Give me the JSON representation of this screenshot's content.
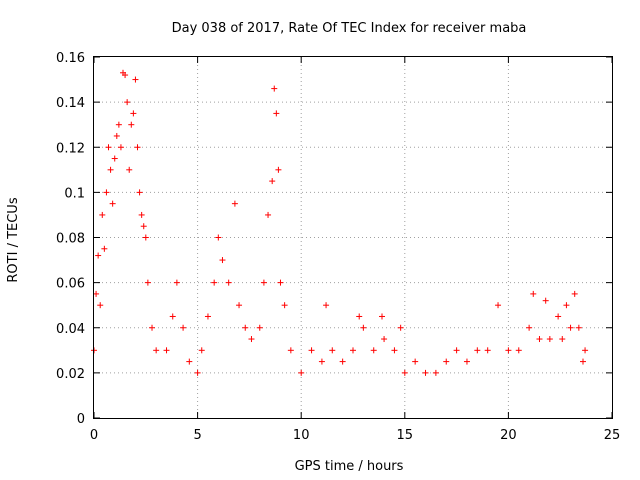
{
  "chart_data": {
    "type": "scatter",
    "title": "Day 038 of 2017, Rate Of TEC Index for receiver maba",
    "xlabel": "GPS time / hours",
    "ylabel": "ROTI / TECUs",
    "xlim": [
      0,
      25
    ],
    "ylim": [
      0,
      0.16
    ],
    "x_ticks": [
      "0",
      "5",
      "10",
      "15",
      "20",
      "25"
    ],
    "y_ticks": [
      "0",
      "0.02",
      "0.04",
      "0.06",
      "0.08",
      "0.1",
      "0.12",
      "0.14",
      "0.16"
    ],
    "grid": true,
    "marker": "plus",
    "series_color": "#ff0000",
    "series": [
      {
        "points": [
          [
            0.0,
            0.03
          ],
          [
            0.1,
            0.055
          ],
          [
            0.2,
            0.072
          ],
          [
            0.3,
            0.05
          ],
          [
            0.4,
            0.09
          ],
          [
            0.5,
            0.075
          ],
          [
            0.6,
            0.1
          ],
          [
            0.7,
            0.12
          ],
          [
            0.8,
            0.11
          ],
          [
            0.9,
            0.095
          ],
          [
            1.0,
            0.115
          ],
          [
            1.1,
            0.125
          ],
          [
            1.2,
            0.13
          ],
          [
            1.3,
            0.12
          ],
          [
            1.4,
            0.153
          ],
          [
            1.5,
            0.152
          ],
          [
            1.6,
            0.14
          ],
          [
            1.7,
            0.11
          ],
          [
            1.8,
            0.13
          ],
          [
            1.9,
            0.135
          ],
          [
            2.0,
            0.15
          ],
          [
            2.1,
            0.12
          ],
          [
            2.2,
            0.1
          ],
          [
            2.3,
            0.09
          ],
          [
            2.4,
            0.085
          ],
          [
            2.5,
            0.08
          ],
          [
            2.6,
            0.06
          ],
          [
            2.8,
            0.04
          ],
          [
            3.0,
            0.03
          ],
          [
            3.5,
            0.03
          ],
          [
            3.8,
            0.045
          ],
          [
            4.0,
            0.06
          ],
          [
            4.3,
            0.04
          ],
          [
            4.6,
            0.025
          ],
          [
            5.0,
            0.02
          ],
          [
            5.2,
            0.03
          ],
          [
            5.5,
            0.045
          ],
          [
            5.8,
            0.06
          ],
          [
            6.0,
            0.08
          ],
          [
            6.2,
            0.07
          ],
          [
            6.5,
            0.06
          ],
          [
            6.8,
            0.095
          ],
          [
            7.0,
            0.05
          ],
          [
            7.3,
            0.04
          ],
          [
            7.6,
            0.035
          ],
          [
            8.0,
            0.04
          ],
          [
            8.2,
            0.06
          ],
          [
            8.4,
            0.09
          ],
          [
            8.6,
            0.105
          ],
          [
            8.7,
            0.146
          ],
          [
            8.8,
            0.135
          ],
          [
            8.9,
            0.11
          ],
          [
            9.0,
            0.06
          ],
          [
            9.2,
            0.05
          ],
          [
            9.5,
            0.03
          ],
          [
            10.0,
            0.02
          ],
          [
            10.5,
            0.03
          ],
          [
            11.0,
            0.025
          ],
          [
            11.2,
            0.05
          ],
          [
            11.5,
            0.03
          ],
          [
            12.0,
            0.025
          ],
          [
            12.5,
            0.03
          ],
          [
            12.8,
            0.045
          ],
          [
            13.0,
            0.04
          ],
          [
            13.5,
            0.03
          ],
          [
            13.9,
            0.045
          ],
          [
            14.0,
            0.035
          ],
          [
            14.5,
            0.03
          ],
          [
            14.8,
            0.04
          ],
          [
            15.0,
            0.02
          ],
          [
            15.5,
            0.025
          ],
          [
            16.0,
            0.02
          ],
          [
            16.5,
            0.02
          ],
          [
            17.0,
            0.025
          ],
          [
            17.5,
            0.03
          ],
          [
            18.0,
            0.025
          ],
          [
            18.5,
            0.03
          ],
          [
            19.0,
            0.03
          ],
          [
            19.5,
            0.05
          ],
          [
            20.0,
            0.03
          ],
          [
            20.5,
            0.03
          ],
          [
            21.0,
            0.04
          ],
          [
            21.2,
            0.055
          ],
          [
            21.5,
            0.035
          ],
          [
            21.8,
            0.052
          ],
          [
            22.0,
            0.035
          ],
          [
            22.4,
            0.045
          ],
          [
            22.6,
            0.035
          ],
          [
            22.8,
            0.05
          ],
          [
            23.0,
            0.04
          ],
          [
            23.2,
            0.055
          ],
          [
            23.4,
            0.04
          ],
          [
            23.6,
            0.025
          ],
          [
            23.7,
            0.03
          ]
        ]
      }
    ]
  }
}
